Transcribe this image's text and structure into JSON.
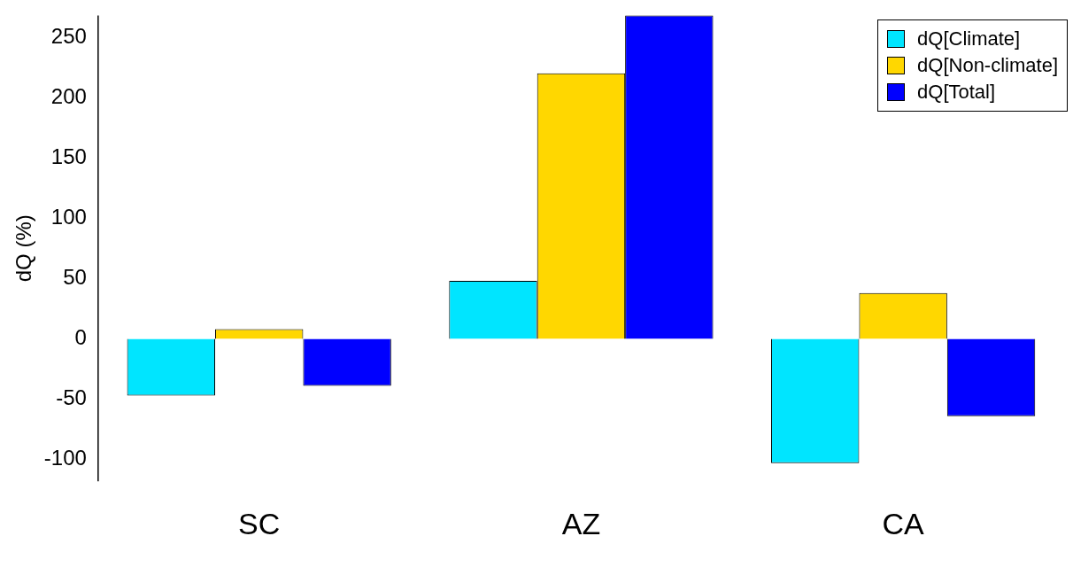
{
  "chart_data": {
    "type": "bar",
    "ylabel": "dQ (%)",
    "categories": [
      "SC",
      "AZ",
      "CA"
    ],
    "series": [
      {
        "name": "dQ[Climate]",
        "color": "#00e5ff",
        "values": [
          -47,
          48,
          -103
        ]
      },
      {
        "name": "dQ[Non-climate]",
        "color": "#ffd700",
        "values": [
          8,
          220,
          38
        ]
      },
      {
        "name": "dQ[Total]",
        "color": "#0000ff",
        "values": [
          -39,
          268,
          -64
        ]
      }
    ],
    "ylim": [
      -118,
      268
    ],
    "yticks": [
      -100,
      -50,
      0,
      50,
      100,
      150,
      200,
      250
    ],
    "grid": false,
    "legend": "top right"
  }
}
